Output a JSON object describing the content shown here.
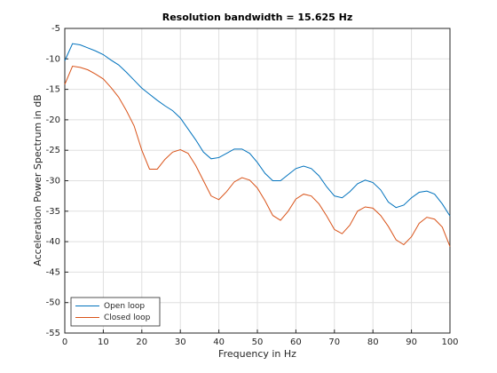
{
  "chart_data": {
    "type": "line",
    "title": "Resolution bandwidth = 15.625 Hz",
    "x_label": "Frequency in Hz",
    "y_label": "Acceleration Power Spectrum in dB",
    "x": [
      0,
      2,
      4,
      6,
      8,
      10,
      12,
      14,
      16,
      18,
      20,
      22,
      24,
      26,
      28,
      30,
      32,
      34,
      36,
      38,
      40,
      42,
      44,
      46,
      48,
      50,
      52,
      54,
      56,
      58,
      60,
      62,
      64,
      66,
      68,
      70,
      72,
      74,
      76,
      78,
      80,
      82,
      84,
      86,
      88,
      90,
      92,
      94,
      96,
      98,
      100
    ],
    "series": [
      {
        "name": "Open loop",
        "color": "#0072BD",
        "values": [
          -10.3,
          -7.5,
          -7.7,
          -8.2,
          -8.7,
          -9.3,
          -10.2,
          -11,
          -12.2,
          -13.5,
          -14.8,
          -15.8,
          -16.8,
          -17.7,
          -18.5,
          -19.7,
          -21.5,
          -23.3,
          -25.3,
          -26.4,
          -26.2,
          -25.5,
          -24.8,
          -24.8,
          -25.5,
          -27,
          -28.8,
          -30,
          -30,
          -29,
          -28,
          -27.6,
          -28,
          -29.2,
          -31,
          -32.5,
          -32.8,
          -31.8,
          -30.5,
          -29.9,
          -30.3,
          -31.5,
          -33.5,
          -34.4,
          -34,
          -32.8,
          -31.9,
          -31.7,
          -32.2,
          -33.8,
          -35.8
        ]
      },
      {
        "name": "Closed loop",
        "color": "#D95319",
        "values": [
          -14.2,
          -11.2,
          -11.4,
          -11.8,
          -12.5,
          -13.3,
          -14.7,
          -16.3,
          -18.5,
          -21,
          -25,
          -28.1,
          -28.1,
          -26.5,
          -25.3,
          -24.9,
          -25.5,
          -27.5,
          -30,
          -32.5,
          -33.1,
          -31.8,
          -30.2,
          -29.5,
          -29.9,
          -31.2,
          -33.3,
          -35.7,
          -36.5,
          -35,
          -33,
          -32.2,
          -32.5,
          -33.8,
          -35.8,
          -38,
          -38.7,
          -37.3,
          -35,
          -34.3,
          -34.5,
          -35.7,
          -37.5,
          -39.7,
          -40.5,
          -39.2,
          -37,
          -36,
          -36.3,
          -37.6,
          -40.8
        ]
      }
    ],
    "xlim": [
      0,
      100
    ],
    "xticks": [
      0,
      10,
      20,
      30,
      40,
      50,
      60,
      70,
      80,
      90,
      100
    ],
    "ylim": [
      -55,
      -5
    ],
    "yticks": [
      -55,
      -50,
      -45,
      -40,
      -35,
      -30,
      -25,
      -20,
      -15,
      -10,
      -5
    ],
    "grid": true,
    "legend": "southwest"
  }
}
